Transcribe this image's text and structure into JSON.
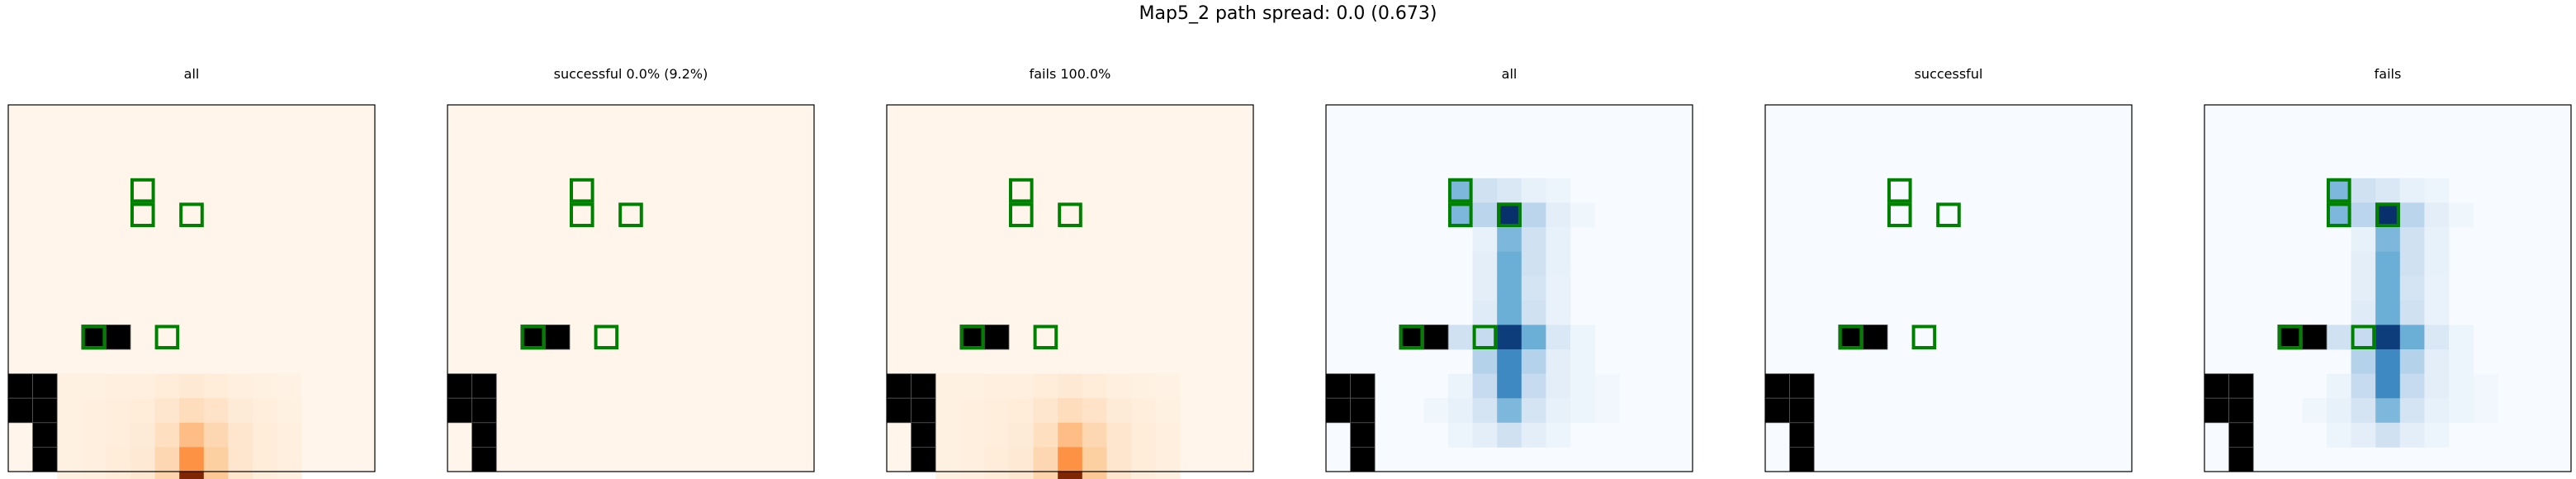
{
  "suptitle": "Map5_2 path spread: 0.0 (0.673)",
  "colors": {
    "frame": "#000000",
    "obstacle": "#000000",
    "target_outline": "#008000",
    "oranges_scale": [
      "#fff5eb",
      "#fdd0a2",
      "#fd8d3c",
      "#d94801",
      "#7f2704"
    ],
    "blues_scale": [
      "#f7fbff",
      "#c6dbef",
      "#6baed6",
      "#2171b5",
      "#08306b"
    ]
  },
  "chart_data": [
    {
      "type": "heatmap",
      "title": "all",
      "colormap": "oranges",
      "grid_size": [
        15,
        15
      ],
      "obstacles": [
        [
          3,
          9
        ],
        [
          4,
          9
        ],
        [
          0,
          11
        ],
        [
          1,
          11
        ],
        [
          0,
          12
        ],
        [
          1,
          12
        ],
        [
          1,
          13
        ],
        [
          1,
          14
        ]
      ],
      "targets": [
        [
          5,
          3
        ],
        [
          5,
          4
        ],
        [
          7,
          4
        ],
        [
          3,
          9
        ],
        [
          6,
          9
        ]
      ],
      "cells": [
        [
          2,
          11,
          0.03
        ],
        [
          3,
          11,
          0.03
        ],
        [
          4,
          11,
          0.04
        ],
        [
          5,
          11,
          0.04
        ],
        [
          6,
          11,
          0.06
        ],
        [
          7,
          11,
          0.08
        ],
        [
          8,
          11,
          0.06
        ],
        [
          9,
          11,
          0.04
        ],
        [
          10,
          11,
          0.03
        ],
        [
          11,
          11,
          0.02
        ],
        [
          2,
          12,
          0.03
        ],
        [
          3,
          12,
          0.04
        ],
        [
          4,
          12,
          0.05
        ],
        [
          5,
          12,
          0.06
        ],
        [
          6,
          12,
          0.1
        ],
        [
          7,
          12,
          0.16
        ],
        [
          8,
          12,
          0.12
        ],
        [
          9,
          12,
          0.07
        ],
        [
          10,
          12,
          0.05
        ],
        [
          11,
          12,
          0.03
        ],
        [
          2,
          13,
          0.03
        ],
        [
          3,
          13,
          0.04
        ],
        [
          4,
          13,
          0.05
        ],
        [
          5,
          13,
          0.07
        ],
        [
          6,
          13,
          0.15
        ],
        [
          7,
          13,
          0.32
        ],
        [
          8,
          13,
          0.2
        ],
        [
          9,
          13,
          0.1
        ],
        [
          10,
          13,
          0.06
        ],
        [
          11,
          13,
          0.04
        ],
        [
          2,
          14,
          0.03
        ],
        [
          3,
          14,
          0.04
        ],
        [
          4,
          14,
          0.06
        ],
        [
          5,
          14,
          0.08
        ],
        [
          6,
          14,
          0.2
        ],
        [
          7,
          14,
          0.48
        ],
        [
          8,
          14,
          0.25
        ],
        [
          9,
          14,
          0.1
        ],
        [
          10,
          14,
          0.06
        ],
        [
          11,
          14,
          0.04
        ],
        [
          2,
          15,
          0.03
        ],
        [
          3,
          15,
          0.04
        ],
        [
          4,
          15,
          0.06
        ],
        [
          5,
          15,
          0.09
        ],
        [
          6,
          15,
          0.22
        ],
        [
          7,
          15,
          1.0
        ],
        [
          8,
          15,
          0.28
        ],
        [
          9,
          15,
          0.1
        ],
        [
          10,
          15,
          0.05
        ],
        [
          11,
          15,
          0.03
        ]
      ]
    },
    {
      "type": "heatmap",
      "title": "successful 0.0% (9.2%)",
      "colormap": "oranges",
      "grid_size": [
        15,
        15
      ],
      "obstacles": [
        [
          3,
          9
        ],
        [
          4,
          9
        ],
        [
          0,
          11
        ],
        [
          1,
          11
        ],
        [
          0,
          12
        ],
        [
          1,
          12
        ],
        [
          1,
          13
        ],
        [
          1,
          14
        ]
      ],
      "targets": [
        [
          5,
          3
        ],
        [
          5,
          4
        ],
        [
          7,
          4
        ],
        [
          3,
          9
        ],
        [
          6,
          9
        ]
      ],
      "cells": []
    },
    {
      "type": "heatmap",
      "title": "fails 100.0%",
      "colormap": "oranges",
      "grid_size": [
        15,
        15
      ],
      "obstacles": [
        [
          3,
          9
        ],
        [
          4,
          9
        ],
        [
          0,
          11
        ],
        [
          1,
          11
        ],
        [
          0,
          12
        ],
        [
          1,
          12
        ],
        [
          1,
          13
        ],
        [
          1,
          14
        ]
      ],
      "targets": [
        [
          5,
          3
        ],
        [
          5,
          4
        ],
        [
          7,
          4
        ],
        [
          3,
          9
        ],
        [
          6,
          9
        ]
      ],
      "cells": [
        [
          2,
          11,
          0.03
        ],
        [
          3,
          11,
          0.03
        ],
        [
          4,
          11,
          0.04
        ],
        [
          5,
          11,
          0.04
        ],
        [
          6,
          11,
          0.06
        ],
        [
          7,
          11,
          0.08
        ],
        [
          8,
          11,
          0.06
        ],
        [
          9,
          11,
          0.04
        ],
        [
          10,
          11,
          0.03
        ],
        [
          11,
          11,
          0.02
        ],
        [
          2,
          12,
          0.03
        ],
        [
          3,
          12,
          0.04
        ],
        [
          4,
          12,
          0.05
        ],
        [
          5,
          12,
          0.06
        ],
        [
          6,
          12,
          0.1
        ],
        [
          7,
          12,
          0.16
        ],
        [
          8,
          12,
          0.12
        ],
        [
          9,
          12,
          0.07
        ],
        [
          10,
          12,
          0.05
        ],
        [
          11,
          12,
          0.03
        ],
        [
          2,
          13,
          0.03
        ],
        [
          3,
          13,
          0.04
        ],
        [
          4,
          13,
          0.05
        ],
        [
          5,
          13,
          0.07
        ],
        [
          6,
          13,
          0.15
        ],
        [
          7,
          13,
          0.32
        ],
        [
          8,
          13,
          0.2
        ],
        [
          9,
          13,
          0.1
        ],
        [
          10,
          13,
          0.06
        ],
        [
          11,
          13,
          0.04
        ],
        [
          2,
          14,
          0.03
        ],
        [
          3,
          14,
          0.04
        ],
        [
          4,
          14,
          0.06
        ],
        [
          5,
          14,
          0.08
        ],
        [
          6,
          14,
          0.2
        ],
        [
          7,
          14,
          0.48
        ],
        [
          8,
          14,
          0.25
        ],
        [
          9,
          14,
          0.1
        ],
        [
          10,
          14,
          0.06
        ],
        [
          11,
          14,
          0.04
        ],
        [
          2,
          15,
          0.03
        ],
        [
          3,
          15,
          0.04
        ],
        [
          4,
          15,
          0.06
        ],
        [
          5,
          15,
          0.09
        ],
        [
          6,
          15,
          0.22
        ],
        [
          7,
          15,
          1.0
        ],
        [
          8,
          15,
          0.28
        ],
        [
          9,
          15,
          0.1
        ],
        [
          10,
          15,
          0.05
        ],
        [
          11,
          15,
          0.03
        ]
      ]
    },
    {
      "type": "heatmap",
      "title": "all",
      "colormap": "blues",
      "grid_size": [
        15,
        15
      ],
      "obstacles": [
        [
          3,
          9
        ],
        [
          4,
          9
        ],
        [
          0,
          11
        ],
        [
          1,
          11
        ],
        [
          0,
          12
        ],
        [
          1,
          12
        ],
        [
          1,
          13
        ],
        [
          1,
          14
        ]
      ],
      "targets": [
        [
          5,
          3
        ],
        [
          5,
          4
        ],
        [
          7,
          4
        ],
        [
          3,
          9
        ],
        [
          6,
          9
        ]
      ],
      "cells": [
        [
          5,
          3,
          0.45
        ],
        [
          6,
          3,
          0.2
        ],
        [
          7,
          3,
          0.15
        ],
        [
          8,
          3,
          0.08
        ],
        [
          9,
          3,
          0.05
        ],
        [
          5,
          4,
          0.45
        ],
        [
          6,
          4,
          0.28
        ],
        [
          7,
          4,
          1.0
        ],
        [
          8,
          4,
          0.28
        ],
        [
          9,
          4,
          0.1
        ],
        [
          10,
          4,
          0.04
        ],
        [
          6,
          5,
          0.08
        ],
        [
          7,
          5,
          0.45
        ],
        [
          8,
          5,
          0.2
        ],
        [
          9,
          5,
          0.08
        ],
        [
          6,
          6,
          0.1
        ],
        [
          7,
          6,
          0.5
        ],
        [
          8,
          6,
          0.2
        ],
        [
          9,
          6,
          0.08
        ],
        [
          6,
          7,
          0.1
        ],
        [
          7,
          7,
          0.5
        ],
        [
          8,
          7,
          0.18
        ],
        [
          9,
          7,
          0.07
        ],
        [
          6,
          8,
          0.12
        ],
        [
          7,
          8,
          0.5
        ],
        [
          8,
          8,
          0.2
        ],
        [
          9,
          8,
          0.07
        ],
        [
          3,
          9,
          0.5
        ],
        [
          4,
          9,
          0.2
        ],
        [
          5,
          9,
          0.2
        ],
        [
          6,
          9,
          0.25
        ],
        [
          7,
          9,
          0.95
        ],
        [
          8,
          9,
          0.5
        ],
        [
          9,
          9,
          0.15
        ],
        [
          10,
          9,
          0.05
        ],
        [
          6,
          10,
          0.3
        ],
        [
          7,
          10,
          0.65
        ],
        [
          8,
          10,
          0.3
        ],
        [
          9,
          10,
          0.1
        ],
        [
          10,
          10,
          0.05
        ],
        [
          5,
          11,
          0.06
        ],
        [
          6,
          11,
          0.25
        ],
        [
          7,
          11,
          0.65
        ],
        [
          8,
          11,
          0.25
        ],
        [
          9,
          11,
          0.1
        ],
        [
          10,
          11,
          0.05
        ],
        [
          11,
          11,
          0.03
        ],
        [
          4,
          12,
          0.04
        ],
        [
          5,
          12,
          0.08
        ],
        [
          6,
          12,
          0.18
        ],
        [
          7,
          12,
          0.45
        ],
        [
          8,
          12,
          0.18
        ],
        [
          9,
          12,
          0.08
        ],
        [
          10,
          12,
          0.05
        ],
        [
          11,
          12,
          0.03
        ],
        [
          5,
          13,
          0.05
        ],
        [
          6,
          13,
          0.1
        ],
        [
          7,
          13,
          0.2
        ],
        [
          8,
          13,
          0.1
        ],
        [
          9,
          13,
          0.05
        ]
      ]
    },
    {
      "type": "heatmap",
      "title": "successful",
      "colormap": "blues",
      "grid_size": [
        15,
        15
      ],
      "obstacles": [
        [
          3,
          9
        ],
        [
          4,
          9
        ],
        [
          0,
          11
        ],
        [
          1,
          11
        ],
        [
          0,
          12
        ],
        [
          1,
          12
        ],
        [
          1,
          13
        ],
        [
          1,
          14
        ]
      ],
      "targets": [
        [
          5,
          3
        ],
        [
          5,
          4
        ],
        [
          7,
          4
        ],
        [
          3,
          9
        ],
        [
          6,
          9
        ]
      ],
      "cells": []
    },
    {
      "type": "heatmap",
      "title": "fails",
      "colormap": "blues",
      "grid_size": [
        15,
        15
      ],
      "obstacles": [
        [
          3,
          9
        ],
        [
          4,
          9
        ],
        [
          0,
          11
        ],
        [
          1,
          11
        ],
        [
          0,
          12
        ],
        [
          1,
          12
        ],
        [
          1,
          13
        ],
        [
          1,
          14
        ]
      ],
      "targets": [
        [
          5,
          3
        ],
        [
          5,
          4
        ],
        [
          7,
          4
        ],
        [
          3,
          9
        ],
        [
          6,
          9
        ]
      ],
      "cells": [
        [
          5,
          3,
          0.45
        ],
        [
          6,
          3,
          0.2
        ],
        [
          7,
          3,
          0.15
        ],
        [
          8,
          3,
          0.08
        ],
        [
          9,
          3,
          0.05
        ],
        [
          5,
          4,
          0.45
        ],
        [
          6,
          4,
          0.28
        ],
        [
          7,
          4,
          1.0
        ],
        [
          8,
          4,
          0.28
        ],
        [
          9,
          4,
          0.1
        ],
        [
          10,
          4,
          0.04
        ],
        [
          6,
          5,
          0.08
        ],
        [
          7,
          5,
          0.45
        ],
        [
          8,
          5,
          0.2
        ],
        [
          9,
          5,
          0.08
        ],
        [
          6,
          6,
          0.1
        ],
        [
          7,
          6,
          0.5
        ],
        [
          8,
          6,
          0.2
        ],
        [
          9,
          6,
          0.08
        ],
        [
          6,
          7,
          0.1
        ],
        [
          7,
          7,
          0.5
        ],
        [
          8,
          7,
          0.18
        ],
        [
          9,
          7,
          0.07
        ],
        [
          6,
          8,
          0.12
        ],
        [
          7,
          8,
          0.5
        ],
        [
          8,
          8,
          0.2
        ],
        [
          9,
          8,
          0.07
        ],
        [
          3,
          9,
          0.5
        ],
        [
          4,
          9,
          0.2
        ],
        [
          5,
          9,
          0.2
        ],
        [
          6,
          9,
          0.25
        ],
        [
          7,
          9,
          0.95
        ],
        [
          8,
          9,
          0.5
        ],
        [
          9,
          9,
          0.15
        ],
        [
          10,
          9,
          0.05
        ],
        [
          6,
          10,
          0.3
        ],
        [
          7,
          10,
          0.65
        ],
        [
          8,
          10,
          0.3
        ],
        [
          9,
          10,
          0.1
        ],
        [
          10,
          10,
          0.05
        ],
        [
          5,
          11,
          0.06
        ],
        [
          6,
          11,
          0.25
        ],
        [
          7,
          11,
          0.65
        ],
        [
          8,
          11,
          0.25
        ],
        [
          9,
          11,
          0.1
        ],
        [
          10,
          11,
          0.05
        ],
        [
          11,
          11,
          0.03
        ],
        [
          4,
          12,
          0.04
        ],
        [
          5,
          12,
          0.08
        ],
        [
          6,
          12,
          0.18
        ],
        [
          7,
          12,
          0.45
        ],
        [
          8,
          12,
          0.18
        ],
        [
          9,
          12,
          0.08
        ],
        [
          10,
          12,
          0.05
        ],
        [
          11,
          12,
          0.03
        ],
        [
          5,
          13,
          0.05
        ],
        [
          6,
          13,
          0.1
        ],
        [
          7,
          13,
          0.2
        ],
        [
          8,
          13,
          0.1
        ],
        [
          9,
          13,
          0.05
        ]
      ]
    }
  ]
}
